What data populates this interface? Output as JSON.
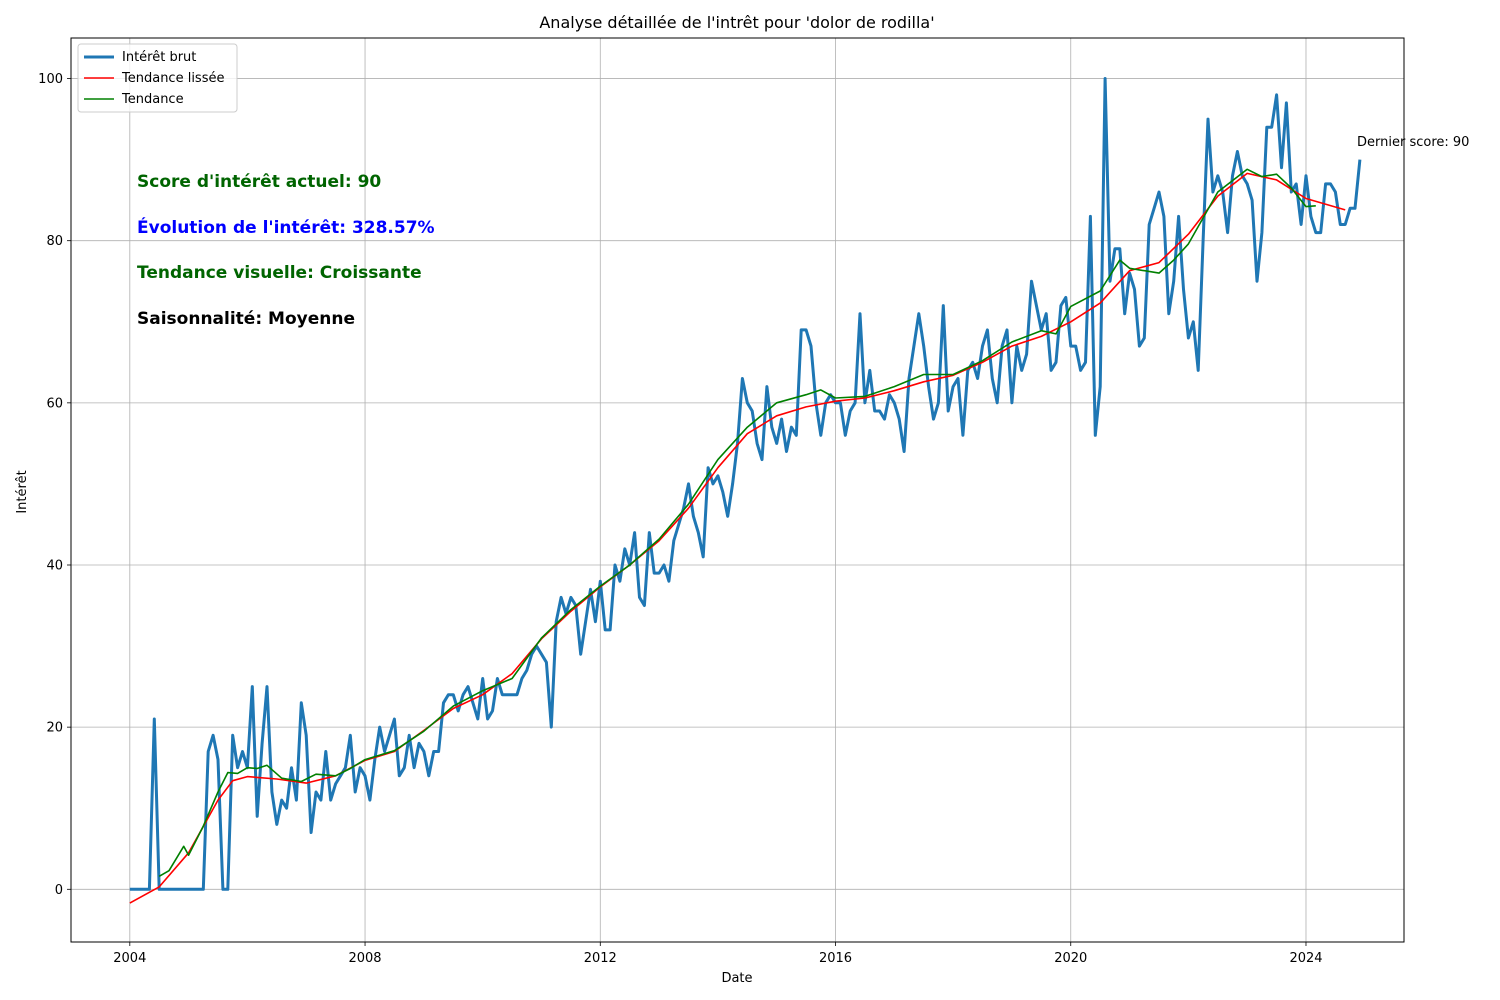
{
  "chart_data": {
    "type": "line",
    "title": "Analyse détaillée de l'intrêt pour 'dolor de rodilla'",
    "xlabel": "Date",
    "ylabel": "Intérêt",
    "x_range": [
      "2003-01",
      "2025-09"
    ],
    "ylim": [
      -6.5,
      105
    ],
    "x_ticks": [
      "2004",
      "2008",
      "2012",
      "2016",
      "2020",
      "2024"
    ],
    "y_ticks": [
      0,
      20,
      40,
      60,
      80,
      100
    ],
    "grid": true,
    "legend": "top-left",
    "x_start": "2004-01",
    "x_step": "month",
    "series": [
      {
        "name": "Intérêt brut",
        "color": "#1f77b4",
        "values": [
          0,
          0,
          0,
          0,
          0,
          21,
          0,
          0,
          0,
          0,
          0,
          0,
          0,
          0,
          0,
          0,
          17,
          19,
          16,
          0,
          0,
          19,
          15,
          17,
          15,
          25,
          9,
          18,
          25,
          12,
          8,
          11,
          10,
          15,
          11,
          23,
          19,
          7,
          12,
          11,
          17,
          11,
          13,
          14,
          15,
          19,
          12,
          15,
          14,
          11,
          16,
          20,
          17,
          19,
          21,
          14,
          15,
          19,
          15,
          18,
          17,
          14,
          17,
          17,
          23,
          24,
          24,
          22,
          24,
          25,
          23,
          21,
          26,
          21,
          22,
          26,
          24,
          24,
          24,
          24,
          26,
          27,
          29,
          30,
          29,
          28,
          20,
          33,
          36,
          34,
          36,
          35,
          29,
          33,
          37,
          33,
          38,
          32,
          32,
          40,
          38,
          42,
          40,
          44,
          36,
          35,
          44,
          39,
          39,
          40,
          38,
          43,
          45,
          47,
          50,
          46,
          44,
          41,
          52,
          50,
          51,
          49,
          46,
          50,
          55,
          63,
          60,
          59,
          55,
          53,
          62,
          57,
          55,
          58,
          54,
          57,
          56,
          69,
          69,
          67,
          60,
          56,
          60,
          61,
          60,
          60,
          56,
          59,
          60,
          71,
          60,
          64,
          59,
          59,
          58,
          61,
          60,
          58,
          54,
          63,
          67,
          71,
          67,
          62,
          58,
          60,
          72,
          59,
          62,
          63,
          56,
          64,
          65,
          63,
          67,
          69,
          63,
          60,
          67,
          69,
          60,
          67,
          64,
          66,
          75,
          72,
          69,
          71,
          64,
          65,
          72,
          73,
          67,
          67,
          64,
          65,
          83,
          56,
          62,
          100,
          75,
          79,
          79,
          71,
          76,
          74,
          67,
          68,
          82,
          84,
          86,
          83,
          71,
          75,
          83,
          74,
          68,
          70,
          64,
          80,
          95,
          86,
          88,
          86,
          81,
          88,
          91,
          88,
          87,
          85,
          75,
          81,
          94,
          94,
          98,
          89,
          97,
          86,
          87,
          82,
          88,
          83,
          81,
          81,
          87,
          87,
          86,
          82,
          82,
          84,
          84,
          90
        ]
      },
      {
        "name": "Tendance lissée",
        "color": "#ff0000",
        "points": [
          [
            "2004-01",
            -1.7
          ],
          [
            "2004-07",
            0.3
          ],
          [
            "2005-01",
            4.5
          ],
          [
            "2005-07",
            11.0
          ],
          [
            "2005-10",
            13.4
          ],
          [
            "2006-01",
            13.9
          ],
          [
            "2006-07",
            13.6
          ],
          [
            "2007-01",
            13.1
          ],
          [
            "2007-07",
            14.0
          ],
          [
            "2008-01",
            15.9
          ],
          [
            "2008-07",
            17.0
          ],
          [
            "2009-01",
            19.6
          ],
          [
            "2009-07",
            22.3
          ],
          [
            "2010-01",
            24.0
          ],
          [
            "2010-07",
            26.6
          ],
          [
            "2011-01",
            30.9
          ],
          [
            "2011-07",
            34.3
          ],
          [
            "2012-01",
            37.3
          ],
          [
            "2012-07",
            40.0
          ],
          [
            "2013-01",
            43.0
          ],
          [
            "2013-07",
            47.0
          ],
          [
            "2014-01",
            52.0
          ],
          [
            "2014-07",
            56.2
          ],
          [
            "2015-01",
            58.4
          ],
          [
            "2015-07",
            59.5
          ],
          [
            "2016-01",
            60.2
          ],
          [
            "2016-07",
            60.6
          ],
          [
            "2017-01",
            61.5
          ],
          [
            "2017-07",
            62.6
          ],
          [
            "2018-01",
            63.4
          ],
          [
            "2018-07",
            65.0
          ],
          [
            "2019-01",
            67.0
          ],
          [
            "2019-07",
            68.2
          ],
          [
            "2020-01",
            70.0
          ],
          [
            "2020-07",
            72.3
          ],
          [
            "2021-01",
            76.3
          ],
          [
            "2021-07",
            77.3
          ],
          [
            "2022-01",
            80.8
          ],
          [
            "2022-07",
            85.5
          ],
          [
            "2023-01",
            88.3
          ],
          [
            "2023-07",
            87.5
          ],
          [
            "2024-01",
            85.2
          ],
          [
            "2024-09",
            83.8
          ]
        ]
      },
      {
        "name": "Tendance",
        "color": "#008000",
        "points": [
          [
            "2004-07",
            1.6
          ],
          [
            "2004-09",
            2.3
          ],
          [
            "2004-12",
            5.3
          ],
          [
            "2005-01",
            4.2
          ],
          [
            "2005-04",
            7.8
          ],
          [
            "2005-07",
            12.0
          ],
          [
            "2005-09",
            14.4
          ],
          [
            "2005-11",
            14.3
          ],
          [
            "2006-01",
            15.0
          ],
          [
            "2006-03",
            14.9
          ],
          [
            "2006-05",
            15.3
          ],
          [
            "2006-08",
            13.7
          ],
          [
            "2006-12",
            13.3
          ],
          [
            "2007-03",
            14.2
          ],
          [
            "2007-07",
            14.0
          ],
          [
            "2007-10",
            14.9
          ],
          [
            "2008-01",
            16.0
          ],
          [
            "2008-07",
            17.1
          ],
          [
            "2009-01",
            19.5
          ],
          [
            "2009-07",
            22.6
          ],
          [
            "2010-01",
            24.5
          ],
          [
            "2010-07",
            26.0
          ],
          [
            "2011-01",
            31.0
          ],
          [
            "2011-07",
            34.5
          ],
          [
            "2012-01",
            37.4
          ],
          [
            "2012-07",
            40.0
          ],
          [
            "2013-01",
            43.2
          ],
          [
            "2013-07",
            47.5
          ],
          [
            "2014-01",
            53.0
          ],
          [
            "2014-07",
            57.0
          ],
          [
            "2015-01",
            60.0
          ],
          [
            "2015-07",
            61.0
          ],
          [
            "2015-10",
            61.6
          ],
          [
            "2016-01",
            60.6
          ],
          [
            "2016-07",
            60.8
          ],
          [
            "2017-01",
            62.0
          ],
          [
            "2017-07",
            63.5
          ],
          [
            "2018-01",
            63.5
          ],
          [
            "2018-07",
            65.2
          ],
          [
            "2019-01",
            67.5
          ],
          [
            "2019-07",
            68.9
          ],
          [
            "2019-10",
            68.5
          ],
          [
            "2020-01",
            71.9
          ],
          [
            "2020-07",
            73.8
          ],
          [
            "2020-11",
            77.6
          ],
          [
            "2021-01",
            76.6
          ],
          [
            "2021-07",
            76.0
          ],
          [
            "2021-10",
            77.6
          ],
          [
            "2022-01",
            79.6
          ],
          [
            "2022-07",
            86.0
          ],
          [
            "2023-01",
            88.8
          ],
          [
            "2023-04",
            87.9
          ],
          [
            "2023-07",
            88.2
          ],
          [
            "2023-10",
            86.5
          ],
          [
            "2024-01",
            84.2
          ],
          [
            "2024-03",
            84.3
          ]
        ]
      }
    ],
    "annotations": {
      "last_score": "Dernier score: 90",
      "current_score": "Score d'intérêt actuel: 90",
      "evolution": "Évolution de l'intérêt: 328.57%",
      "visual_trend": "Tendance visuelle: Croissante",
      "seasonality": "Saisonnalité: Moyenne"
    },
    "annotation_colors": {
      "current_score": "#006400",
      "evolution": "#0000ff",
      "visual_trend": "#006400",
      "seasonality": "#000000"
    }
  }
}
